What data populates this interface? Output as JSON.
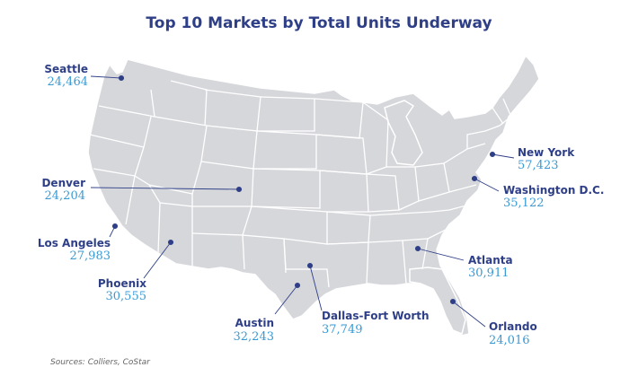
{
  "title": "Top 10 Markets by Total Units Underway",
  "source": "Sources: Colliers, CoStar",
  "colors": {
    "title": "#2e3f87",
    "city": "#2e3f87",
    "value": "#3a9ad4",
    "land": "#d6d7db",
    "border": "#ffffff",
    "marker": "#2e3f87"
  },
  "markets": [
    {
      "id": "seattle",
      "name": "Seattle",
      "units": "24,464"
    },
    {
      "id": "denver",
      "name": "Denver",
      "units": "24,204"
    },
    {
      "id": "los-angeles",
      "name": "Los Angeles",
      "units": "27,983"
    },
    {
      "id": "phoenix",
      "name": "Phoenix",
      "units": "30,555"
    },
    {
      "id": "austin",
      "name": "Austin",
      "units": "32,243"
    },
    {
      "id": "dallas-fort-worth",
      "name": "Dallas-Fort Worth",
      "units": "37,749"
    },
    {
      "id": "orlando",
      "name": "Orlando",
      "units": "24,016"
    },
    {
      "id": "atlanta",
      "name": "Atlanta",
      "units": "30,911"
    },
    {
      "id": "washington-dc",
      "name": "Washington D.C.",
      "units": "35,122"
    },
    {
      "id": "new-york",
      "name": "New York",
      "units": "57,423"
    }
  ]
}
